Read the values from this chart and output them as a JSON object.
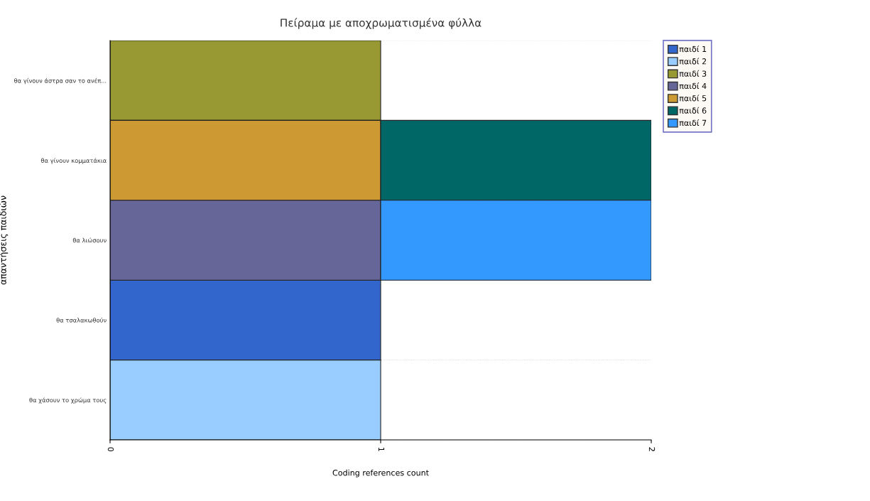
{
  "chart_data": {
    "type": "bar",
    "orientation": "horizontal",
    "stacked": true,
    "title": "Πείραμα με αποχρωματισμένα φύλλα",
    "xlabel": "Coding references count",
    "ylabel": "απαντήσεις παιδιών",
    "categories": [
      "θα γίνουν άστρα σαν το ανέπ...",
      "θα γίνουν κομματάκια",
      "θα λιώσουν",
      "θα τσαλακωθούν",
      "θα χάσουν το χρώμα τους"
    ],
    "series": [
      {
        "name": "παιδί 1",
        "color": "#3366cc",
        "values": [
          null,
          null,
          null,
          1,
          null
        ]
      },
      {
        "name": "παιδί 2",
        "color": "#99ccff",
        "values": [
          null,
          null,
          null,
          null,
          1
        ]
      },
      {
        "name": "παιδί 3",
        "color": "#999933",
        "values": [
          1,
          null,
          null,
          null,
          null
        ]
      },
      {
        "name": "παιδί 4",
        "color": "#666699",
        "values": [
          null,
          null,
          1,
          null,
          null
        ]
      },
      {
        "name": "παιδί 5",
        "color": "#cc9933",
        "values": [
          null,
          1,
          null,
          null,
          null
        ]
      },
      {
        "name": "παιδί 6",
        "color": "#006666",
        "values": [
          null,
          1,
          null,
          null,
          null
        ]
      },
      {
        "name": "παιδί 7",
        "color": "#3399ff",
        "values": [
          null,
          null,
          1,
          null,
          null
        ]
      }
    ],
    "xlim": [
      0,
      2
    ],
    "xticks": [
      0,
      1,
      2
    ],
    "legend": "right"
  }
}
